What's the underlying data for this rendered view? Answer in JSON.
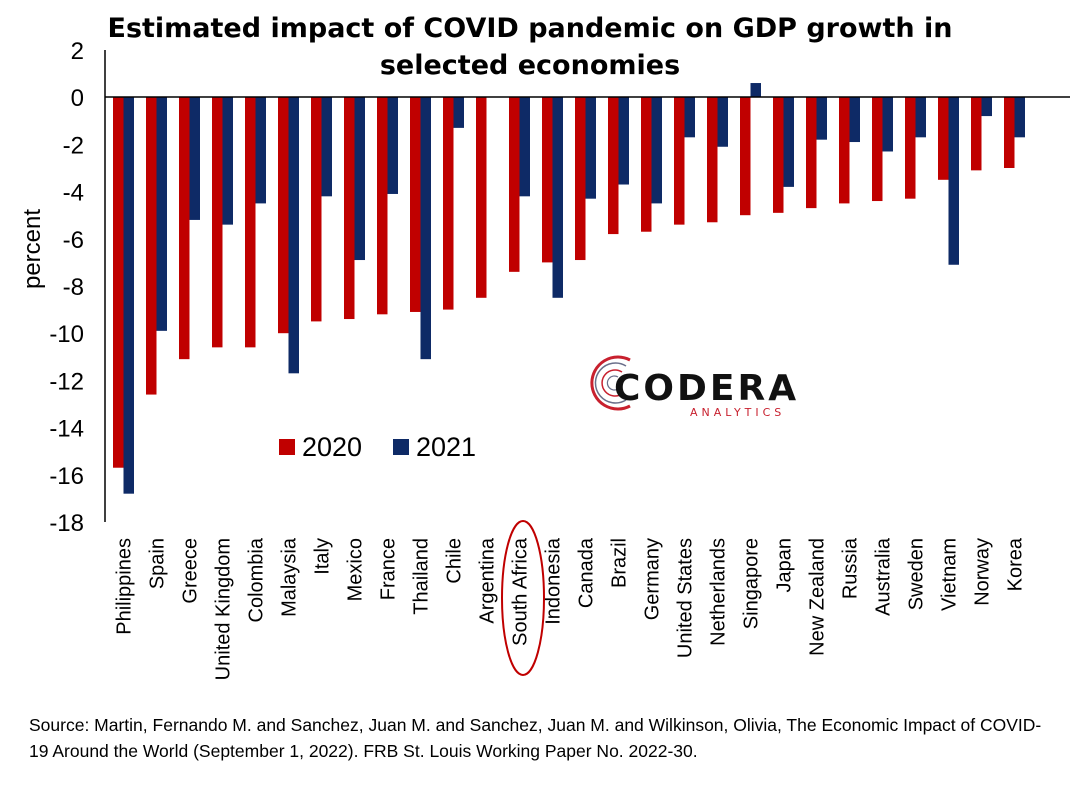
{
  "chart_data": {
    "type": "bar",
    "title_lines": [
      "Estimated impact of COVID pandemic on GDP growth in",
      "selected economies"
    ],
    "ylabel": "percent",
    "ylim": [
      -18,
      2
    ],
    "yticks": [
      "2",
      "0",
      "-2",
      "-4",
      "-6",
      "-8",
      "-10",
      "-12",
      "-14",
      "-16",
      "-18"
    ],
    "categories": [
      "Philippines",
      "Spain",
      "Greece",
      "United Kingdom",
      "Colombia",
      "Malaysia",
      "Italy",
      "Mexico",
      "France",
      "Thailand",
      "Chile",
      "Argentina",
      "South Africa",
      "Indonesia",
      "Canada",
      "Brazil",
      "Germany",
      "United States",
      "Netherlands",
      "Singapore",
      "Japan",
      "New Zealand",
      "Russia",
      "Australia",
      "Sweden",
      "Vietnam",
      "Norway",
      "Korea"
    ],
    "series": [
      {
        "name": "2020",
        "values": [
          -15.7,
          -12.6,
          -11.1,
          -10.6,
          -10.6,
          -10.0,
          -9.5,
          -9.4,
          -9.2,
          -9.1,
          -9.0,
          -8.5,
          -7.4,
          -7.0,
          -6.9,
          -5.8,
          -5.7,
          -5.4,
          -5.3,
          -5.0,
          -4.9,
          -4.7,
          -4.5,
          -4.4,
          -4.3,
          -3.5,
          -3.1,
          -3.0
        ]
      },
      {
        "name": "2021",
        "values": [
          -16.8,
          -9.9,
          -5.2,
          -5.4,
          -4.5,
          -11.7,
          -4.2,
          -6.9,
          -4.1,
          -11.1,
          -1.3,
          null,
          -4.2,
          -8.5,
          -4.3,
          -3.7,
          -4.5,
          -1.7,
          -2.1,
          0.6,
          -3.8,
          -1.8,
          -1.9,
          -2.3,
          -1.7,
          -7.1,
          -0.8,
          -1.7
        ]
      }
    ],
    "legend_position": "lower-left-inside",
    "highlighted_category": "South Africa",
    "grid": false,
    "colors": {
      "2020": "#c00000",
      "2021": "#0e2a66",
      "highlight_ellipse": "#c00000"
    }
  },
  "logo": {
    "name": "CODERA",
    "tagline": "ANALYTICS"
  },
  "source_text": "Source: Martin, Fernando M. and Sanchez, Juan M. and Sanchez, Juan M. and Wilkinson, Olivia, The Economic Impact of COVID-19 Around the World (September 1, 2022). FRB St. Louis Working Paper No. 2022-30."
}
